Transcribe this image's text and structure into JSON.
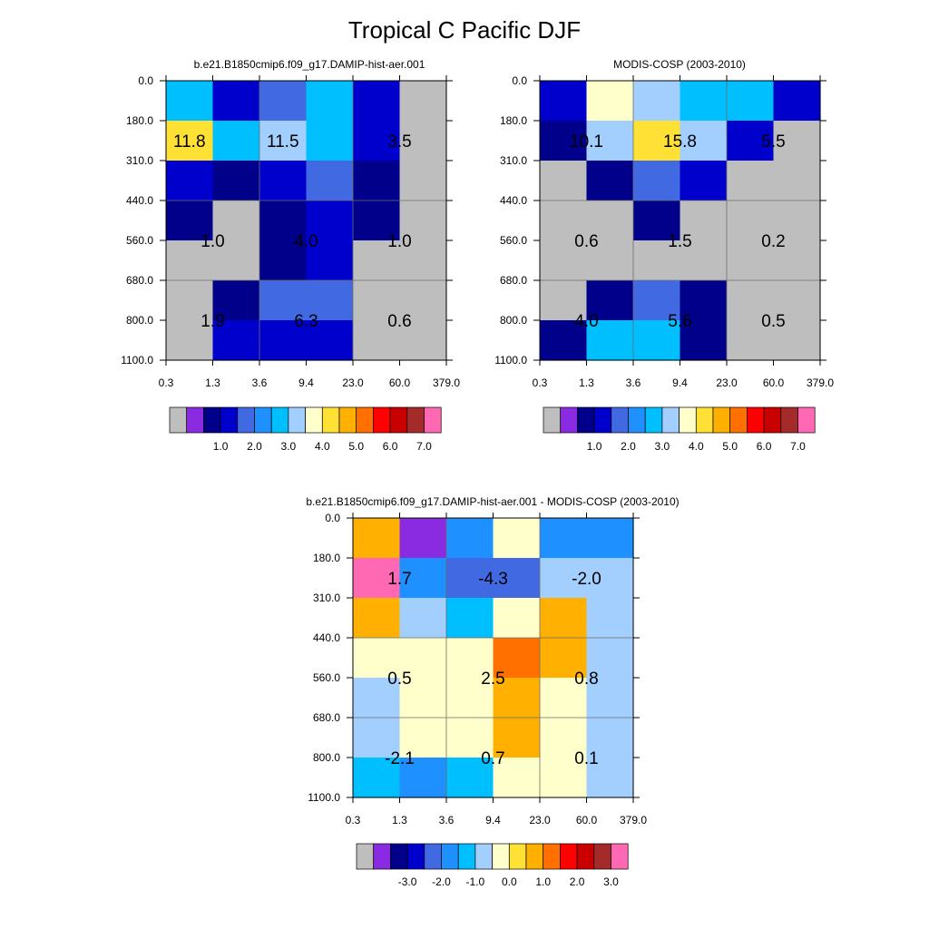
{
  "figure": {
    "title": "Tropical C Pacific DJF"
  },
  "chart_data": [
    {
      "type": "heatmap",
      "title": "b.e21.B1850cmip6.f09_g17.DAMIP-hist-aer.001",
      "x_ticks": [
        "0.3",
        "1.3",
        "3.6",
        "9.4",
        "23.0",
        "60.0",
        "379.0"
      ],
      "y_ticks": [
        "0.0",
        "180.0",
        "310.0",
        "440.0",
        "560.0",
        "680.0",
        "800.0",
        "1100.0"
      ],
      "cells": [
        [
          2.6,
          1.3,
          1.7,
          2.6,
          1.3,
          null
        ],
        [
          4.1,
          2.6,
          3.1,
          2.6,
          1.3,
          null
        ],
        [
          1.3,
          0.7,
          1.3,
          1.7,
          0.7,
          null
        ],
        [
          0.7,
          null,
          0.7,
          1.3,
          0.7,
          null
        ],
        [
          null,
          null,
          0.7,
          1.3,
          null,
          null
        ],
        [
          null,
          0.7,
          1.7,
          1.7,
          null,
          null
        ],
        [
          null,
          1.3,
          1.3,
          1.3,
          null,
          null
        ]
      ],
      "labels": [
        {
          "text": "11.8",
          "col": 0.5,
          "row": 1.5
        },
        {
          "text": "11.5",
          "col": 2.5,
          "row": 1.5
        },
        {
          "text": "3.5",
          "col": 5.0,
          "row": 1.5
        },
        {
          "text": "1.0",
          "col": 1.0,
          "row": 4.0
        },
        {
          "text": "4.0",
          "col": 3.0,
          "row": 4.0
        },
        {
          "text": "1.0",
          "col": 5.0,
          "row": 4.0
        },
        {
          "text": "1.9",
          "col": 1.0,
          "row": 6.0
        },
        {
          "text": "6.3",
          "col": 3.0,
          "row": 6.0
        },
        {
          "text": "0.6",
          "col": 5.0,
          "row": 6.0
        }
      ],
      "colorbar": {
        "labels": [
          "1.0",
          "2.0",
          "3.0",
          "4.0",
          "5.0",
          "6.0",
          "7.0"
        ]
      }
    },
    {
      "type": "heatmap",
      "title": "MODIS-COSP (2003-2010)",
      "x_ticks": [
        "0.3",
        "1.3",
        "3.6",
        "9.4",
        "23.0",
        "60.0",
        "379.0"
      ],
      "y_ticks": [
        "0.0",
        "180.0",
        "310.0",
        "440.0",
        "560.0",
        "680.0",
        "800.0",
        "1100.0"
      ],
      "cells": [
        [
          1.3,
          3.6,
          3.1,
          2.6,
          2.6,
          1.3
        ],
        [
          0.7,
          3.3,
          4.1,
          3.3,
          1.3,
          null
        ],
        [
          null,
          0.7,
          1.7,
          1.3,
          null,
          null
        ],
        [
          null,
          null,
          0.7,
          null,
          null,
          null
        ],
        [
          null,
          null,
          null,
          null,
          null,
          null
        ],
        [
          null,
          0.7,
          1.7,
          0.7,
          null,
          null
        ],
        [
          0.7,
          2.6,
          2.6,
          0.7,
          null,
          null
        ]
      ],
      "labels": [
        {
          "text": "10.1",
          "col": 1.0,
          "row": 1.5
        },
        {
          "text": "15.8",
          "col": 3.0,
          "row": 1.5
        },
        {
          "text": "5.5",
          "col": 5.0,
          "row": 1.5
        },
        {
          "text": "0.6",
          "col": 1.0,
          "row": 4.0
        },
        {
          "text": "1.5",
          "col": 3.0,
          "row": 4.0
        },
        {
          "text": "0.2",
          "col": 5.0,
          "row": 4.0
        },
        {
          "text": "4.0",
          "col": 1.0,
          "row": 6.0
        },
        {
          "text": "5.6",
          "col": 3.0,
          "row": 6.0
        },
        {
          "text": "0.5",
          "col": 5.0,
          "row": 6.0
        }
      ],
      "colorbar": {
        "labels": [
          "1.0",
          "2.0",
          "3.0",
          "4.0",
          "5.0",
          "6.0",
          "7.0"
        ]
      }
    },
    {
      "type": "heatmap",
      "title": "b.e21.B1850cmip6.f09_g17.DAMIP-hist-aer.001 - MODIS-COSP (2003-2010)",
      "x_ticks": [
        "0.3",
        "1.3",
        "3.6",
        "9.4",
        "23.0",
        "60.0",
        "379.0"
      ],
      "y_ticks": [
        "0.0",
        "180.0",
        "310.0",
        "440.0",
        "560.0",
        "680.0",
        "800.0",
        "1100.0"
      ],
      "cells": [
        [
          1.2,
          -3.2,
          -1.3,
          0.3,
          -1.3,
          -1.3
        ],
        [
          3.8,
          -1.3,
          -1.8,
          -1.8,
          -0.3,
          -0.3
        ],
        [
          1.2,
          -0.3,
          -0.8,
          0.3,
          1.2,
          -0.3
        ],
        [
          0.3,
          0.3,
          0.3,
          1.8,
          1.2,
          -0.3
        ],
        [
          -0.3,
          0.3,
          0.3,
          1.2,
          0.3,
          -0.3
        ],
        [
          -0.3,
          0.3,
          0.3,
          1.2,
          0.3,
          -0.3
        ],
        [
          -0.8,
          -1.3,
          -0.8,
          0.3,
          0.3,
          -0.3
        ]
      ],
      "labels": [
        {
          "text": "1.7",
          "col": 1.0,
          "row": 1.5
        },
        {
          "text": "-4.3",
          "col": 3.0,
          "row": 1.5
        },
        {
          "text": "-2.0",
          "col": 5.0,
          "row": 1.5
        },
        {
          "text": "0.5",
          "col": 1.0,
          "row": 4.0
        },
        {
          "text": "2.5",
          "col": 3.0,
          "row": 4.0
        },
        {
          "text": "0.8",
          "col": 5.0,
          "row": 4.0
        },
        {
          "text": "-2.1",
          "col": 1.0,
          "row": 6.0
        },
        {
          "text": "0.7",
          "col": 3.0,
          "row": 6.0
        },
        {
          "text": "0.1",
          "col": 5.0,
          "row": 6.0
        }
      ],
      "colorbar": {
        "labels": [
          "-3.0",
          "-2.0",
          "-1.0",
          "0.0",
          "1.0",
          "2.0",
          "3.0"
        ]
      }
    }
  ],
  "colors": {
    "missing": "#bebebe",
    "palette": [
      "#8a2be2",
      "#00008b",
      "#0000cd",
      "#4169e1",
      "#1e90ff",
      "#00bfff",
      "#a2cffe",
      "#ffffcc",
      "#ffe135",
      "#ffb000",
      "#ff7000",
      "#ff0000",
      "#c80000",
      "#a52a2a",
      "#ff69b4"
    ],
    "abs_levels": [
      0.0,
      0.5,
      1.0,
      1.5,
      2.0,
      2.5,
      3.0,
      3.5,
      4.0,
      4.5,
      5.0,
      5.5,
      6.0,
      6.5,
      7.0
    ],
    "diff_levels": [
      -3.5,
      -3.0,
      -2.5,
      -2.0,
      -1.5,
      -1.0,
      -0.5,
      0.0,
      0.5,
      1.0,
      1.5,
      2.0,
      2.5,
      3.0,
      3.5
    ]
  }
}
